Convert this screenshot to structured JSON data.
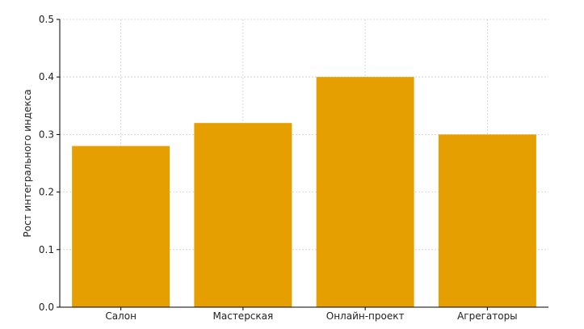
{
  "chart_data": {
    "type": "bar",
    "title": "",
    "xlabel": "",
    "ylabel": "Рост интегрального индекса",
    "categories": [
      "Салон",
      "Мастерская",
      "Онлайн-проект",
      "Агрегаторы"
    ],
    "values": [
      0.28,
      0.32,
      0.4,
      0.3
    ],
    "ylim": [
      0,
      0.5
    ],
    "yticks": [
      0.0,
      0.1,
      0.2,
      0.3,
      0.4,
      0.5
    ],
    "ytick_labels": [
      "0.0",
      "0.1",
      "0.2",
      "0.3",
      "0.4",
      "0.5"
    ],
    "grid": true,
    "bar_color": "#e69f00"
  }
}
